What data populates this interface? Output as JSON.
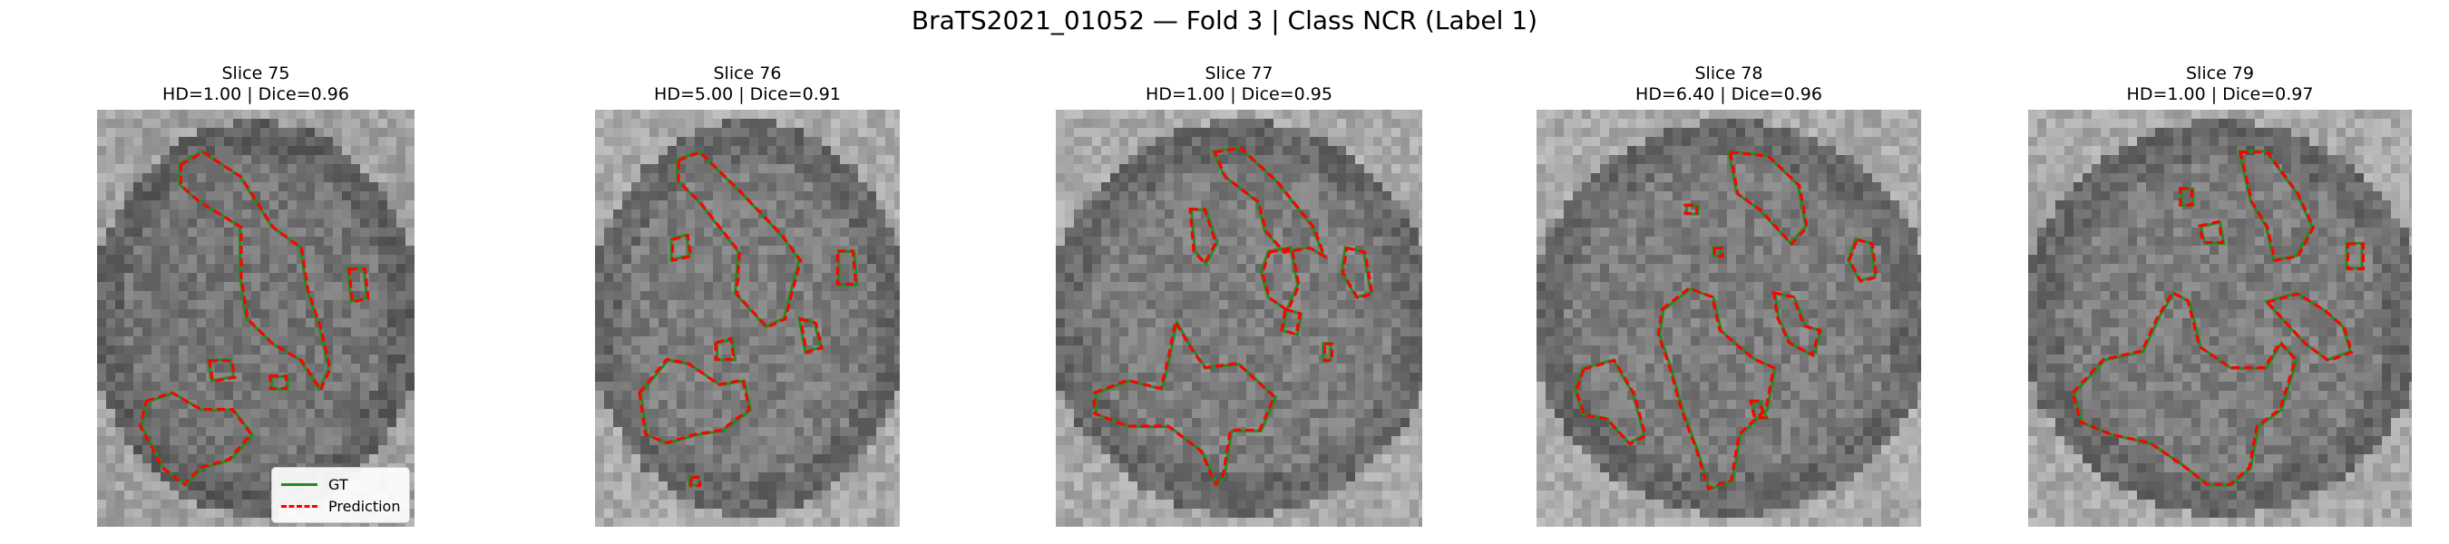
{
  "figure": {
    "suptitle": "BraTS2021_01052 — Fold 3 | Class NCR (Label 1)"
  },
  "legend": {
    "items": [
      {
        "label": "GT",
        "color": "#228b22",
        "style": "solid"
      },
      {
        "label": "Prediction",
        "color": "#ff0000",
        "style": "dashed"
      }
    ]
  },
  "chart_data": [
    {
      "type": "image",
      "title": "Slice 75",
      "subtitle": "HD=1.00 | Dice=0.96",
      "slice": 75,
      "hd": 1.0,
      "dice": 0.96
    },
    {
      "type": "image",
      "title": "Slice 76",
      "subtitle": "HD=5.00 | Dice=0.91",
      "slice": 76,
      "hd": 5.0,
      "dice": 0.91
    },
    {
      "type": "image",
      "title": "Slice 77",
      "subtitle": "HD=1.00 | Dice=0.95",
      "slice": 77,
      "hd": 1.0,
      "dice": 0.95
    },
    {
      "type": "image",
      "title": "Slice 78",
      "subtitle": "HD=6.40 | Dice=0.96",
      "slice": 78,
      "hd": 6.4,
      "dice": 0.96
    },
    {
      "type": "image",
      "title": "Slice 79",
      "subtitle": "HD=1.00 | Dice=0.97",
      "slice": 79,
      "hd": 1.0,
      "dice": 0.97
    }
  ],
  "colors": {
    "gt": "#228b22",
    "prediction": "#ff0000"
  }
}
